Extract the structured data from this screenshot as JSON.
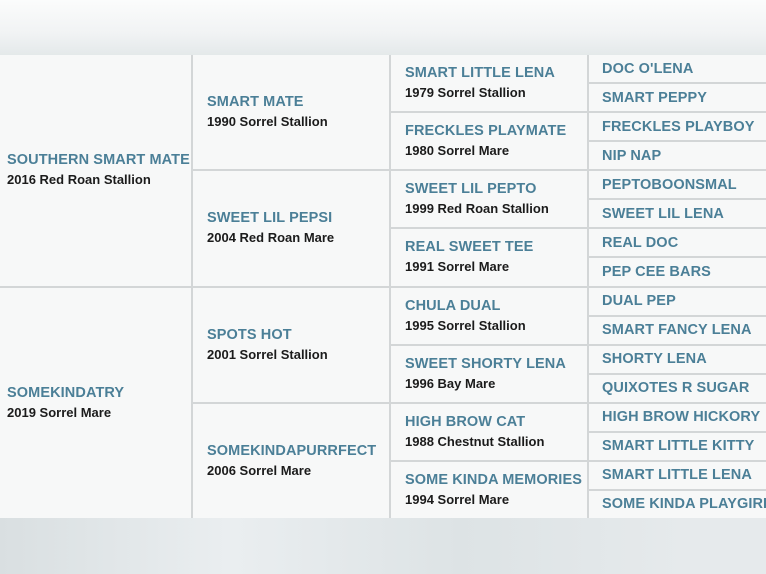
{
  "gen1": [
    {
      "name": "SOUTHERN SMART MATE",
      "detail": "2016 Red Roan Stallion"
    },
    {
      "name": "SOMEKINDATRY",
      "detail": "2019 Sorrel Mare"
    }
  ],
  "gen2": [
    {
      "name": "SMART MATE",
      "detail": "1990 Sorrel Stallion"
    },
    {
      "name": "SWEET LIL PEPSI",
      "detail": "2004 Red Roan Mare"
    },
    {
      "name": "SPOTS HOT",
      "detail": "2001 Sorrel Stallion"
    },
    {
      "name": "SOMEKINDAPURRFECT",
      "detail": "2006 Sorrel Mare"
    }
  ],
  "gen3": [
    {
      "name": "SMART LITTLE LENA",
      "detail": "1979 Sorrel Stallion"
    },
    {
      "name": "FRECKLES PLAYMATE",
      "detail": "1980 Sorrel Mare"
    },
    {
      "name": "SWEET LIL PEPTO",
      "detail": "1999 Red Roan Stallion"
    },
    {
      "name": "REAL SWEET TEE",
      "detail": "1991 Sorrel Mare"
    },
    {
      "name": "CHULA DUAL",
      "detail": "1995 Sorrel Stallion"
    },
    {
      "name": "SWEET SHORTY LENA",
      "detail": "1996 Bay Mare"
    },
    {
      "name": "HIGH BROW CAT",
      "detail": "1988 Chestnut Stallion"
    },
    {
      "name": "SOME KINDA MEMORIES",
      "detail": "1994 Sorrel Mare"
    }
  ],
  "gen4": [
    "DOC O'LENA",
    "SMART PEPPY",
    "FRECKLES PLAYBOY",
    "NIP NAP",
    "PEPTOBOONSMAL",
    "SWEET LIL LENA",
    "REAL DOC",
    "PEP CEE BARS",
    "DUAL PEP",
    "SMART FANCY LENA",
    "SHORTY LENA",
    "QUIXOTES R SUGAR",
    "HIGH BROW HICKORY",
    "SMART LITTLE KITTY",
    "SMART LITTLE LENA",
    "SOME KINDA PLAYGIRL"
  ],
  "colors": {
    "name": "#4b7f97",
    "detail": "#1b1b1b",
    "border": "#d3d6d7",
    "cell": "#f7f8f8"
  }
}
